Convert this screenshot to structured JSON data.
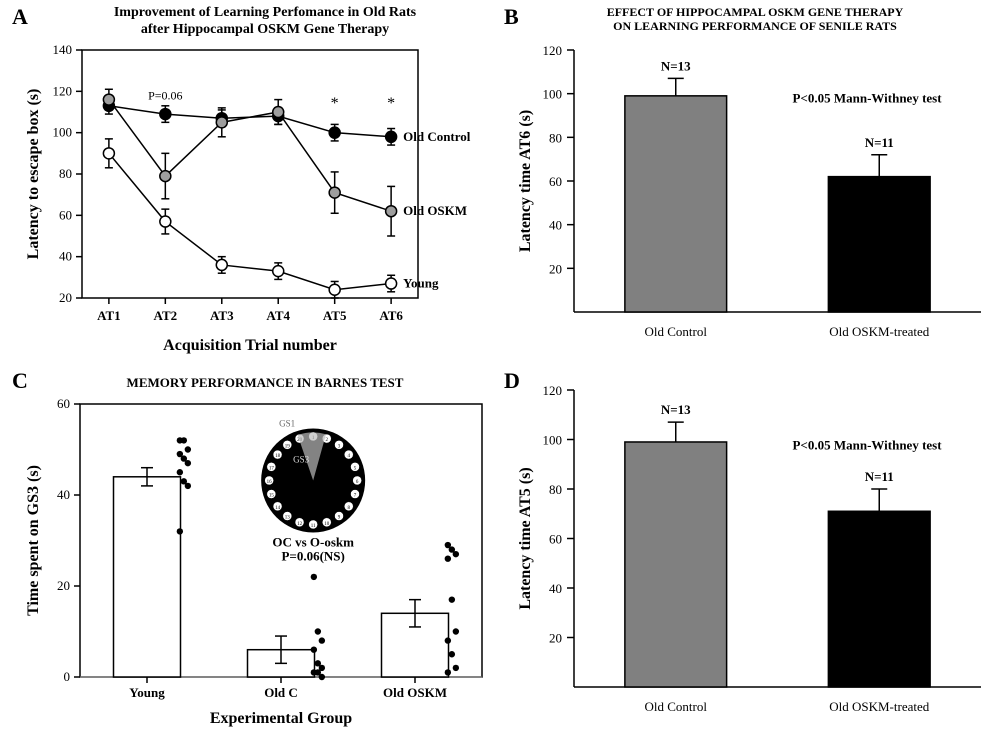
{
  "panelA": {
    "label": "A",
    "title_l1": "Improvement of Learning Perfomance in Old Rats",
    "title_l2": "after Hippocampal OSKM Gene Therapy",
    "type": "line",
    "x_categories": [
      "AT1",
      "AT2",
      "AT3",
      "AT4",
      "AT5",
      "AT6"
    ],
    "xlabel": "Acquisition Trial number",
    "ylabel": "Latency to escape box (s)",
    "ylim": [
      20,
      140
    ],
    "ytick_step": 20,
    "series": [
      {
        "name": "Old Control",
        "marker_fill": "#000000",
        "values": [
          113,
          109,
          107,
          108,
          100,
          98
        ],
        "err": [
          4,
          4,
          4,
          4,
          4,
          4
        ]
      },
      {
        "name": "Old OSKM",
        "marker_fill": "#9e9e9e",
        "values": [
          116,
          79,
          105,
          110,
          71,
          62
        ],
        "err": [
          5,
          11,
          7,
          6,
          10,
          12
        ]
      },
      {
        "name": "Young",
        "marker_fill": "#ffffff",
        "values": [
          90,
          57,
          36,
          33,
          24,
          27
        ],
        "err": [
          7,
          6,
          4,
          4,
          4,
          4
        ]
      }
    ],
    "p_annot": "P=0.06",
    "stars": [
      "*",
      "*"
    ],
    "line_color": "#000000",
    "marker_stroke": "#000000",
    "background_color": "#ffffff"
  },
  "panelB": {
    "label": "B",
    "title_l1": "EFFECT OF HIPPOCAMPAL OSKM GENE THERAPY",
    "title_l2": "ON LEARNING PERFORMANCE OF SENILE RATS",
    "type": "bar",
    "categories": [
      "Old Control",
      "Old OSKM-treated"
    ],
    "values": [
      99,
      62
    ],
    "err": [
      8,
      10
    ],
    "n_labels": [
      "N=13",
      "N=11"
    ],
    "bar_colors": [
      "#808080",
      "#000000"
    ],
    "ylabel": "Latency time AT6 (s)",
    "ylim": [
      0,
      120
    ],
    "ytick_step": 20,
    "bar_start_tick": 20,
    "p_annot": "P<0.05 Mann-Withney test",
    "bar_width": 0.5,
    "background_color": "#ffffff"
  },
  "panelC": {
    "label": "C",
    "title": "MEMORY PERFORMANCE IN BARNES TEST",
    "type": "bar_scatter",
    "categories": [
      "Young",
      "Old C",
      "Old OSKM"
    ],
    "bar_values": [
      44,
      6,
      14
    ],
    "bar_err": [
      2,
      3,
      3
    ],
    "points": {
      "Young": [
        52,
        52,
        50,
        49,
        48,
        47,
        45,
        43,
        42,
        32
      ],
      "Old C": [
        22,
        10,
        8,
        6,
        3,
        2,
        1,
        1,
        0
      ],
      "Old OSKM": [
        29,
        28,
        27,
        26,
        17,
        10,
        8,
        5,
        2,
        1
      ]
    },
    "xlabel": "Experimental Group",
    "ylabel": "Time spent on GS3 (s)",
    "ylim": [
      0,
      60
    ],
    "ytick_step": 20,
    "bar_fill": "#ffffff",
    "bar_stroke": "#000000",
    "point_fill": "#000000",
    "annot_l1": "OC vs O-oskm",
    "annot_l2": "P=0.06(NS)",
    "inset_label_gs1": "GS1",
    "inset_label_gs3": "GS3",
    "background_color": "#ffffff"
  },
  "panelD": {
    "label": "D",
    "type": "bar",
    "categories": [
      "Old Control",
      "Old OSKM-treated"
    ],
    "values": [
      99,
      71
    ],
    "err": [
      8,
      9
    ],
    "n_labels": [
      "N=13",
      "N=11"
    ],
    "bar_colors": [
      "#808080",
      "#000000"
    ],
    "ylabel": "Latency time AT5 (s)",
    "ylim": [
      0,
      120
    ],
    "ytick_step": 20,
    "bar_start_tick": 20,
    "p_annot": "P<0.05 Mann-Withney test",
    "bar_width": 0.5,
    "background_color": "#ffffff"
  }
}
